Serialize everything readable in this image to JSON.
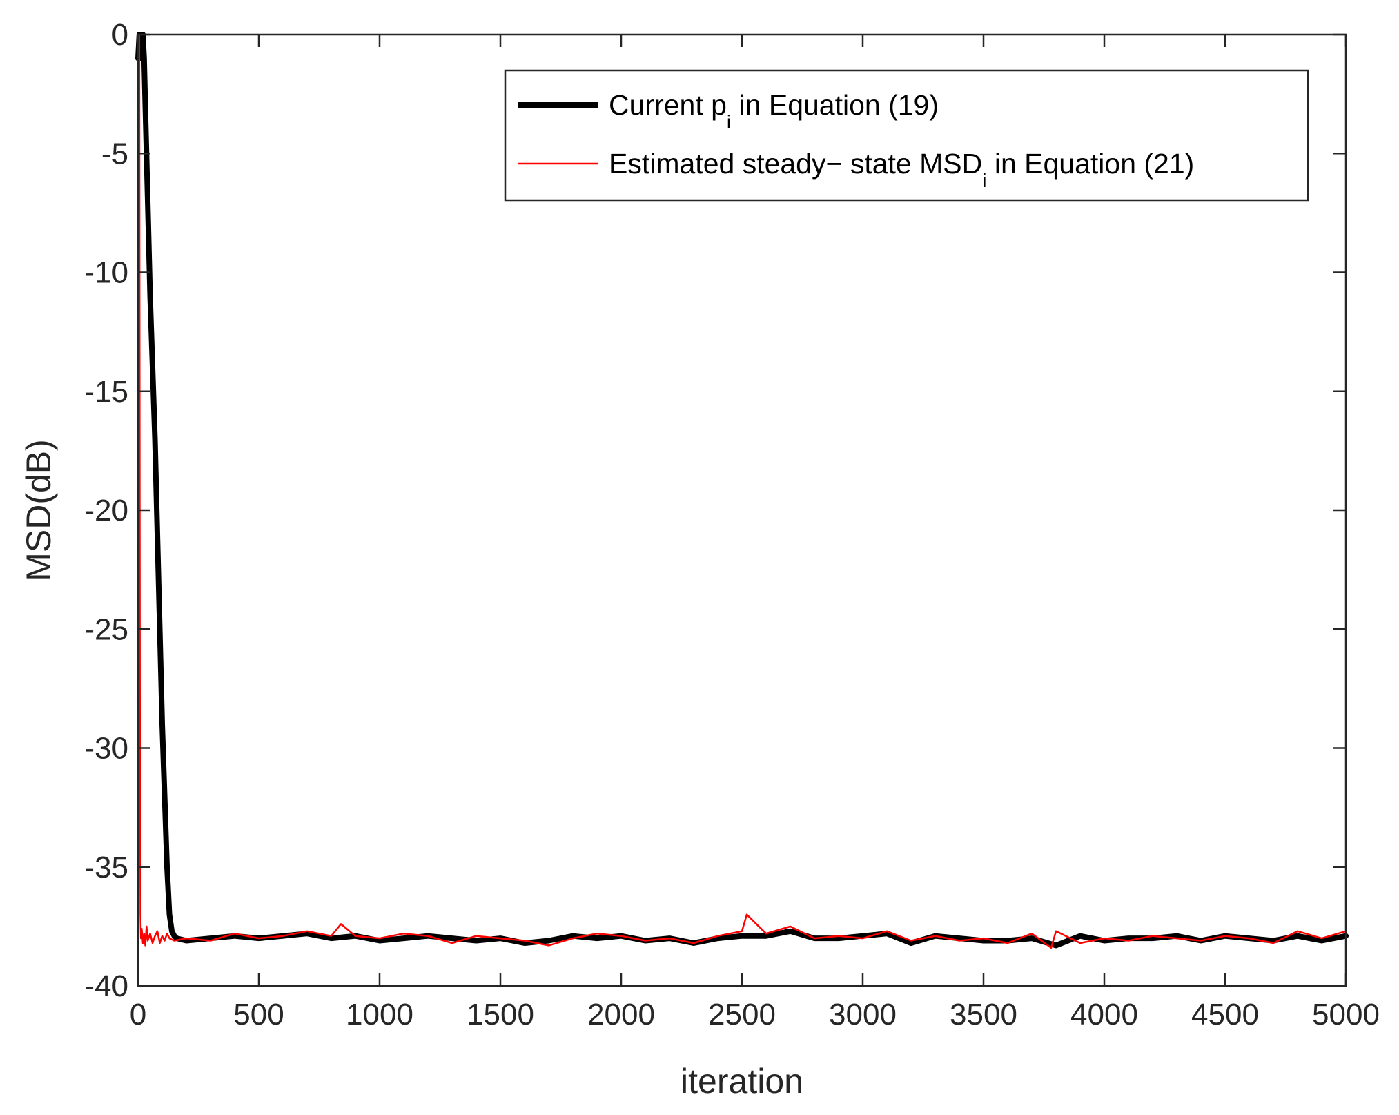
{
  "chart_data": {
    "type": "line",
    "xlabel": "iteration",
    "ylabel": "MSD(dB)",
    "xlim": [
      0,
      5000
    ],
    "ylim": [
      -40,
      0
    ],
    "xticks": [
      0,
      500,
      1000,
      1500,
      2000,
      2500,
      3000,
      3500,
      4000,
      4500,
      5000
    ],
    "yticks": [
      0,
      -5,
      -10,
      -15,
      -20,
      -25,
      -30,
      -35,
      -40
    ],
    "grid": false,
    "legend": {
      "placement": "top-right",
      "entries": [
        {
          "series": 0,
          "text": "Current p",
          "sub": "i",
          "tail": " in Equation (19)"
        },
        {
          "series": 1,
          "text": "Estimated steady− state MSD",
          "sub": "i",
          "tail": " in Equation (21)"
        }
      ]
    },
    "series": [
      {
        "color": "#000000",
        "width": "thick",
        "x": [
          0,
          5,
          10,
          15,
          20,
          25,
          30,
          40,
          50,
          60,
          70,
          80,
          90,
          100,
          110,
          120,
          130,
          140,
          150,
          160,
          200,
          300,
          400,
          500,
          600,
          700,
          800,
          900,
          1000,
          1100,
          1200,
          1300,
          1400,
          1500,
          1600,
          1700,
          1800,
          1900,
          2000,
          2100,
          2200,
          2300,
          2400,
          2500,
          2600,
          2700,
          2800,
          2900,
          3000,
          3100,
          3200,
          3300,
          3400,
          3500,
          3600,
          3700,
          3800,
          3900,
          4000,
          4100,
          4200,
          4300,
          4400,
          4500,
          4600,
          4700,
          4800,
          4900,
          5000
        ],
        "y": [
          -1,
          0,
          0,
          -1,
          0,
          -1,
          -3,
          -7,
          -11,
          -14,
          -17,
          -21,
          -25,
          -29,
          -32,
          -35,
          -37,
          -37.7,
          -37.9,
          -38,
          -38.1,
          -38,
          -37.9,
          -38,
          -37.9,
          -37.8,
          -38,
          -37.9,
          -38.1,
          -38,
          -37.9,
          -38,
          -38.1,
          -38,
          -38.2,
          -38.1,
          -37.9,
          -38,
          -37.9,
          -38.1,
          -38,
          -38.2,
          -38,
          -37.9,
          -37.9,
          -37.7,
          -38,
          -38,
          -37.9,
          -37.8,
          -38.2,
          -37.9,
          -38,
          -38.1,
          -38.1,
          -38,
          -38.3,
          -37.9,
          -38.1,
          -38,
          -38,
          -37.9,
          -38.1,
          -37.9,
          -38,
          -38.1,
          -37.9,
          -38.1,
          -37.9
        ]
      },
      {
        "color": "#ff0000",
        "width": "thin",
        "x": [
          0,
          5,
          8,
          10,
          12,
          15,
          20,
          25,
          30,
          35,
          40,
          50,
          60,
          70,
          80,
          90,
          100,
          110,
          120,
          130,
          150,
          200,
          300,
          400,
          500,
          600,
          700,
          800,
          840,
          900,
          1000,
          1100,
          1200,
          1300,
          1400,
          1500,
          1600,
          1700,
          1800,
          1900,
          2000,
          2100,
          2200,
          2300,
          2400,
          2500,
          2520,
          2600,
          2700,
          2800,
          2900,
          3000,
          3100,
          3200,
          3300,
          3400,
          3500,
          3600,
          3700,
          3780,
          3800,
          3900,
          4000,
          4100,
          4200,
          4300,
          4400,
          4500,
          4600,
          4700,
          4800,
          4900,
          5000
        ],
        "y": [
          -2,
          0,
          -30,
          -37,
          -38,
          -37.6,
          -38.2,
          -37.8,
          -38.3,
          -37.5,
          -38.1,
          -37.8,
          -38.2,
          -37.9,
          -37.7,
          -38.2,
          -37.9,
          -38.1,
          -37.8,
          -38,
          -38.1,
          -38,
          -38.1,
          -37.8,
          -38,
          -37.9,
          -37.7,
          -37.9,
          -37.4,
          -37.9,
          -38,
          -37.8,
          -37.9,
          -38.2,
          -37.9,
          -38,
          -38.1,
          -38.3,
          -38,
          -37.8,
          -37.9,
          -38.1,
          -38,
          -38.2,
          -37.9,
          -37.7,
          -37,
          -37.8,
          -37.5,
          -38,
          -37.9,
          -38,
          -37.7,
          -38.1,
          -37.9,
          -38.1,
          -38,
          -38.2,
          -37.8,
          -38.4,
          -37.7,
          -38.2,
          -38,
          -38.1,
          -37.9,
          -38,
          -38.1,
          -37.9,
          -38,
          -38.2,
          -37.7,
          -38,
          -37.7
        ]
      }
    ]
  }
}
